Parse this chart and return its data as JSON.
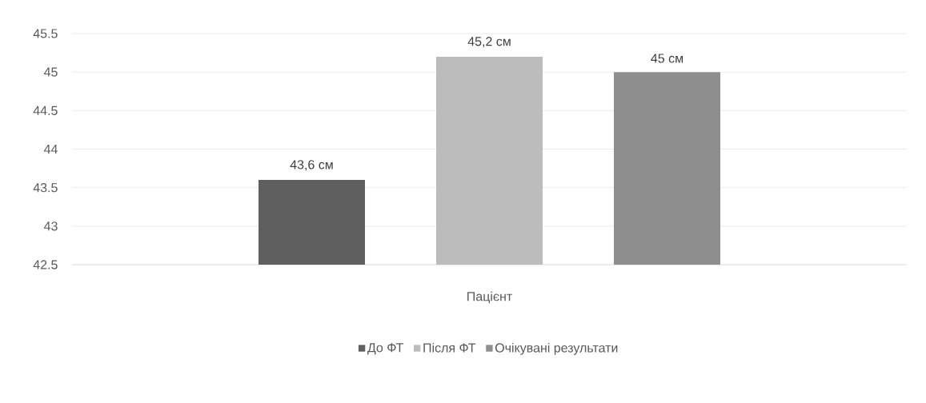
{
  "chart_data": {
    "type": "bar",
    "categories": [
      "Пацієнт"
    ],
    "series": [
      {
        "name": "До ФТ",
        "color": "#5f5f5f",
        "values": [
          43.6
        ],
        "value_labels": [
          "43,6 см"
        ]
      },
      {
        "name": "Після ФТ",
        "color": "#bcbcbc",
        "values": [
          45.2
        ],
        "value_labels": [
          "45,2 см"
        ]
      },
      {
        "name": "Очікувані результати",
        "color": "#8e8e8e",
        "values": [
          45
        ],
        "value_labels": [
          "45 см"
        ]
      }
    ],
    "ylim": [
      42.5,
      45.5
    ],
    "yticks": [
      42.5,
      43,
      43.5,
      44,
      44.5,
      45,
      45.5
    ],
    "grid": "y",
    "legend": "bottom"
  }
}
